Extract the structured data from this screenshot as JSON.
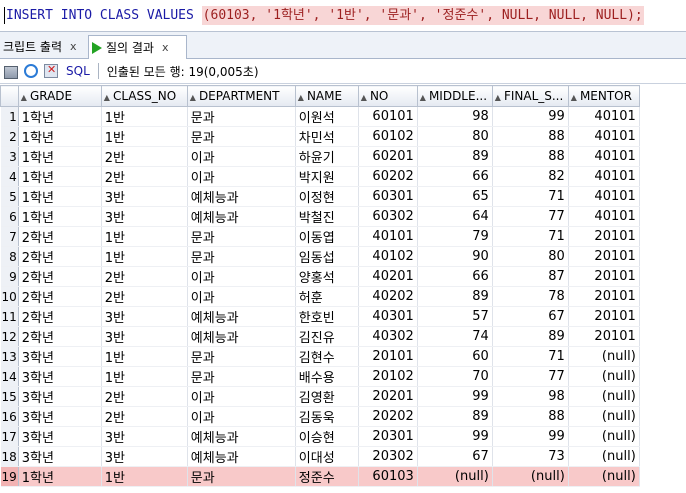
{
  "editor": {
    "sql_prefix": "INSERT INTO CLASS VALUES ",
    "sql_values": "(60103, '1학년', '1반', '문과', '정준수', NULL, NULL, NULL);"
  },
  "tabs": [
    {
      "label": "크립트 출력",
      "close": "x"
    },
    {
      "label": "질의 결과",
      "close": "x"
    }
  ],
  "toolbar": {
    "sql_label": "SQL",
    "status": "인출된 모든 행: 19(0,005초)"
  },
  "colors": {
    "selected_row": "#f8c9c9",
    "header_bg": "#e4e9f1"
  },
  "table": {
    "columns": [
      "GRADE",
      "CLASS_NO",
      "DEPARTMENT",
      "NAME",
      "NO",
      "MIDDLE...",
      "FINAL_S...",
      "MENTOR"
    ],
    "rows": [
      [
        "1",
        "1학년",
        "1반",
        "문과",
        "이원석",
        "60101",
        "98",
        "99",
        "40101"
      ],
      [
        "2",
        "1학년",
        "1반",
        "문과",
        "차민석",
        "60102",
        "80",
        "88",
        "40101"
      ],
      [
        "3",
        "1학년",
        "2반",
        "이과",
        "하윤기",
        "60201",
        "89",
        "88",
        "40101"
      ],
      [
        "4",
        "1학년",
        "2반",
        "이과",
        "박지원",
        "60202",
        "66",
        "82",
        "40101"
      ],
      [
        "5",
        "1학년",
        "3반",
        "예체능과",
        "이정현",
        "60301",
        "65",
        "71",
        "40101"
      ],
      [
        "6",
        "1학년",
        "3반",
        "예체능과",
        "박철진",
        "60302",
        "64",
        "77",
        "40101"
      ],
      [
        "7",
        "2학년",
        "1반",
        "문과",
        "이동엽",
        "40101",
        "79",
        "71",
        "20101"
      ],
      [
        "8",
        "2학년",
        "1반",
        "문과",
        "임동섭",
        "40102",
        "90",
        "80",
        "20101"
      ],
      [
        "9",
        "2학년",
        "2반",
        "이과",
        "양홍석",
        "40201",
        "66",
        "87",
        "20101"
      ],
      [
        "10",
        "2학년",
        "2반",
        "이과",
        "허훈",
        "40202",
        "89",
        "78",
        "20101"
      ],
      [
        "11",
        "2학년",
        "3반",
        "예체능과",
        "한호빈",
        "40301",
        "57",
        "67",
        "20101"
      ],
      [
        "12",
        "2학년",
        "3반",
        "예체능과",
        "김진유",
        "40302",
        "74",
        "89",
        "20101"
      ],
      [
        "13",
        "3학년",
        "1반",
        "문과",
        "김현수",
        "20101",
        "60",
        "71",
        "(null)"
      ],
      [
        "14",
        "3학년",
        "1반",
        "문과",
        "배수용",
        "20102",
        "70",
        "77",
        "(null)"
      ],
      [
        "15",
        "3학년",
        "2반",
        "이과",
        "김영환",
        "20201",
        "99",
        "98",
        "(null)"
      ],
      [
        "16",
        "3학년",
        "2반",
        "이과",
        "김동욱",
        "20202",
        "89",
        "88",
        "(null)"
      ],
      [
        "17",
        "3학년",
        "3반",
        "예체능과",
        "이승현",
        "20301",
        "99",
        "99",
        "(null)"
      ],
      [
        "18",
        "3학년",
        "3반",
        "예체능과",
        "이대성",
        "20302",
        "67",
        "73",
        "(null)"
      ],
      [
        "19",
        "1학년",
        "1반",
        "문과",
        "정준수",
        "60103",
        "(null)",
        "(null)",
        "(null)"
      ]
    ],
    "selected_row": 19
  }
}
